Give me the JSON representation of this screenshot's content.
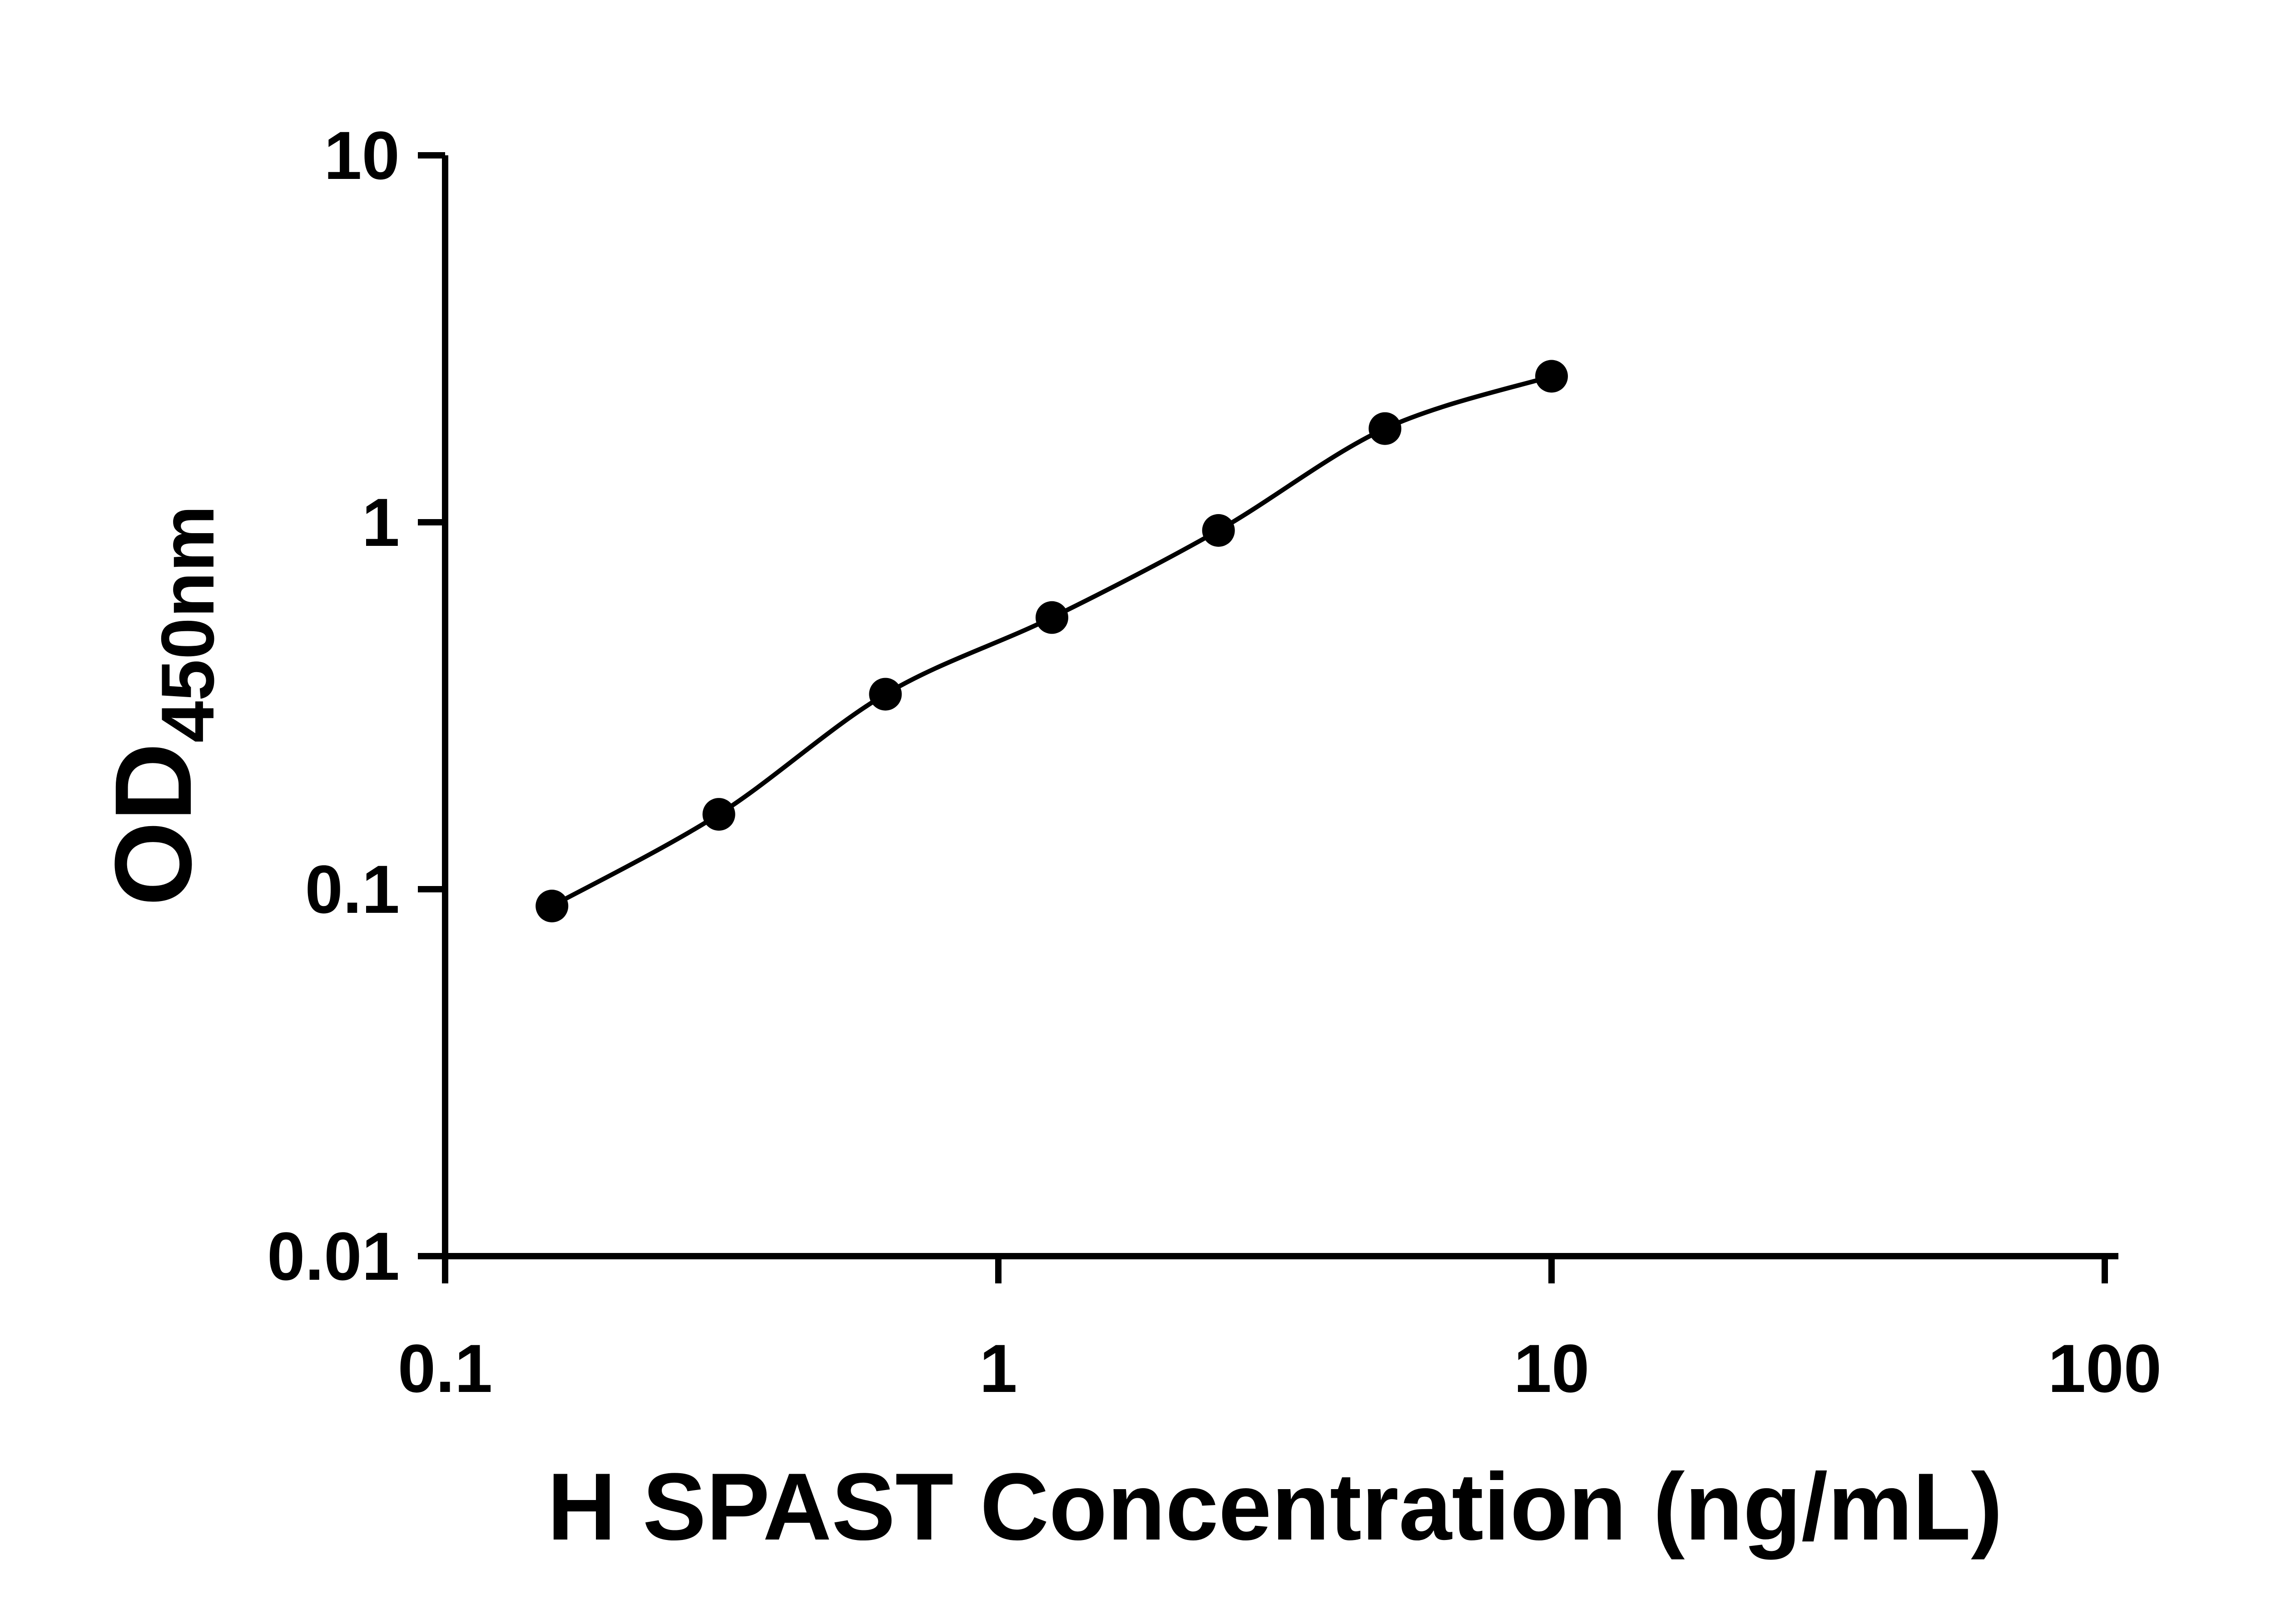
{
  "figure": {
    "background": "#ffffff"
  },
  "chart_data": {
    "type": "scatter",
    "title": "",
    "xlabel": "H SPAST Concentration (ng/mL)",
    "ylabel_main": "OD",
    "ylabel_subscript": "450nm",
    "x_scale": "log10",
    "y_scale": "log10",
    "xlim": [
      0.1,
      100
    ],
    "ylim": [
      0.01,
      10
    ],
    "x_ticks": [
      0.1,
      1,
      10,
      100
    ],
    "x_tick_labels": [
      "0.1",
      "1",
      "10",
      "100"
    ],
    "y_ticks": [
      0.01,
      0.1,
      1,
      10
    ],
    "y_tick_labels": [
      "0.01",
      "0.1",
      "1",
      "10"
    ],
    "x": [
      0.156,
      0.3125,
      0.625,
      1.25,
      2.5,
      5,
      10
    ],
    "y": [
      0.09,
      0.16,
      0.34,
      0.55,
      0.95,
      1.8,
      2.5
    ],
    "marker": "filled-circle",
    "marker_color": "#000000",
    "line_color": "#000000",
    "axis_color": "#000000",
    "grid": false,
    "legend": "none",
    "smooth_curve": true
  }
}
